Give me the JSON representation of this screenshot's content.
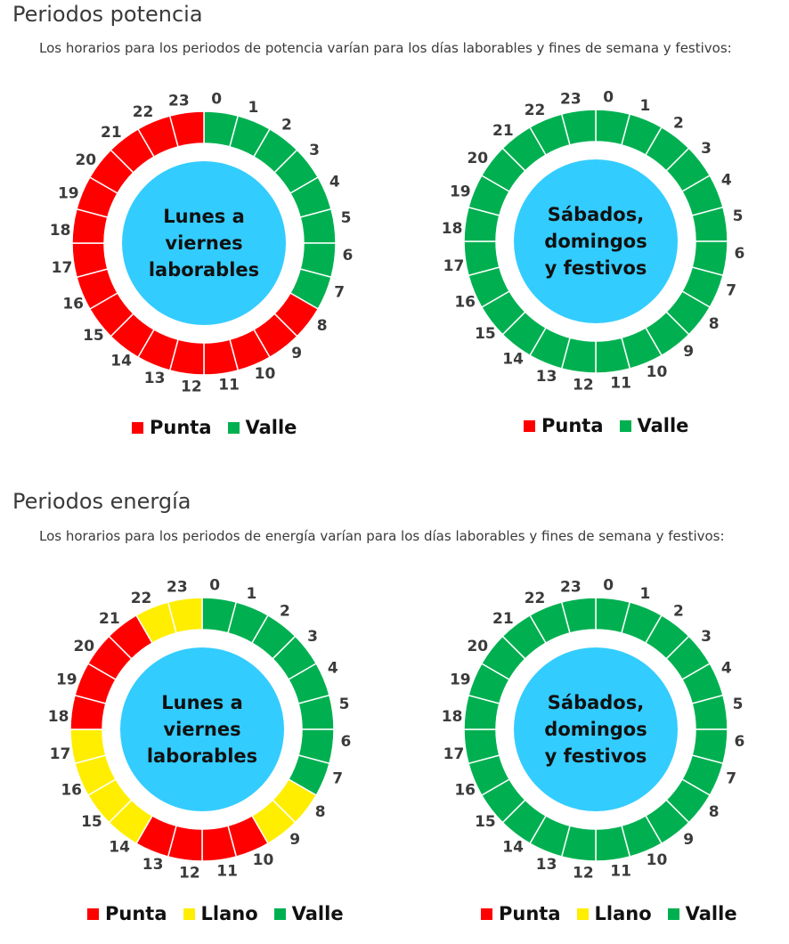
{
  "colors": {
    "punta": "#ff0000",
    "llano": "#ffee00",
    "valle": "#00b050",
    "center": "#33ccff"
  },
  "sections": [
    {
      "title": "Periodos potencia",
      "description": "Los horarios para los periodos de potencia varían para los días laborables y fines de semana y festivos:",
      "clocks": [
        {
          "center_lines": [
            "Lunes a",
            "viernes",
            "laborables"
          ],
          "hours": [
            "valle",
            "valle",
            "valle",
            "valle",
            "valle",
            "valle",
            "valle",
            "valle",
            "punta",
            "punta",
            "punta",
            "punta",
            "punta",
            "punta",
            "punta",
            "punta",
            "punta",
            "punta",
            "punta",
            "punta",
            "punta",
            "punta",
            "punta",
            "punta"
          ],
          "legend": [
            {
              "key": "punta",
              "label": "Punta"
            },
            {
              "key": "valle",
              "label": "Valle"
            }
          ]
        },
        {
          "center_lines": [
            "Sábados,",
            "domingos",
            "y festivos"
          ],
          "hours": [
            "valle",
            "valle",
            "valle",
            "valle",
            "valle",
            "valle",
            "valle",
            "valle",
            "valle",
            "valle",
            "valle",
            "valle",
            "valle",
            "valle",
            "valle",
            "valle",
            "valle",
            "valle",
            "valle",
            "valle",
            "valle",
            "valle",
            "valle",
            "valle"
          ],
          "legend": [
            {
              "key": "punta",
              "label": "Punta"
            },
            {
              "key": "valle",
              "label": "Valle"
            }
          ]
        }
      ]
    },
    {
      "title": "Periodos energía",
      "description": "Los horarios para los periodos de energía varían para los días laborables y fines de semana y festivos:",
      "clocks": [
        {
          "center_lines": [
            "Lunes a",
            "viernes",
            "laborables"
          ],
          "hours": [
            "valle",
            "valle",
            "valle",
            "valle",
            "valle",
            "valle",
            "valle",
            "valle",
            "llano",
            "llano",
            "punta",
            "punta",
            "punta",
            "punta",
            "llano",
            "llano",
            "llano",
            "llano",
            "punta",
            "punta",
            "punta",
            "punta",
            "llano",
            "llano"
          ],
          "legend": [
            {
              "key": "punta",
              "label": "Punta"
            },
            {
              "key": "llano",
              "label": "Llano"
            },
            {
              "key": "valle",
              "label": "Valle"
            }
          ]
        },
        {
          "center_lines": [
            "Sábados,",
            "domingos",
            "y festivos"
          ],
          "hours": [
            "valle",
            "valle",
            "valle",
            "valle",
            "valle",
            "valle",
            "valle",
            "valle",
            "valle",
            "valle",
            "valle",
            "valle",
            "valle",
            "valle",
            "valle",
            "valle",
            "valle",
            "valle",
            "valle",
            "valle",
            "valle",
            "valle",
            "valle",
            "valle"
          ],
          "legend": [
            {
              "key": "punta",
              "label": "Punta"
            },
            {
              "key": "llano",
              "label": "Llano"
            },
            {
              "key": "valle",
              "label": "Valle"
            }
          ]
        }
      ]
    }
  ]
}
